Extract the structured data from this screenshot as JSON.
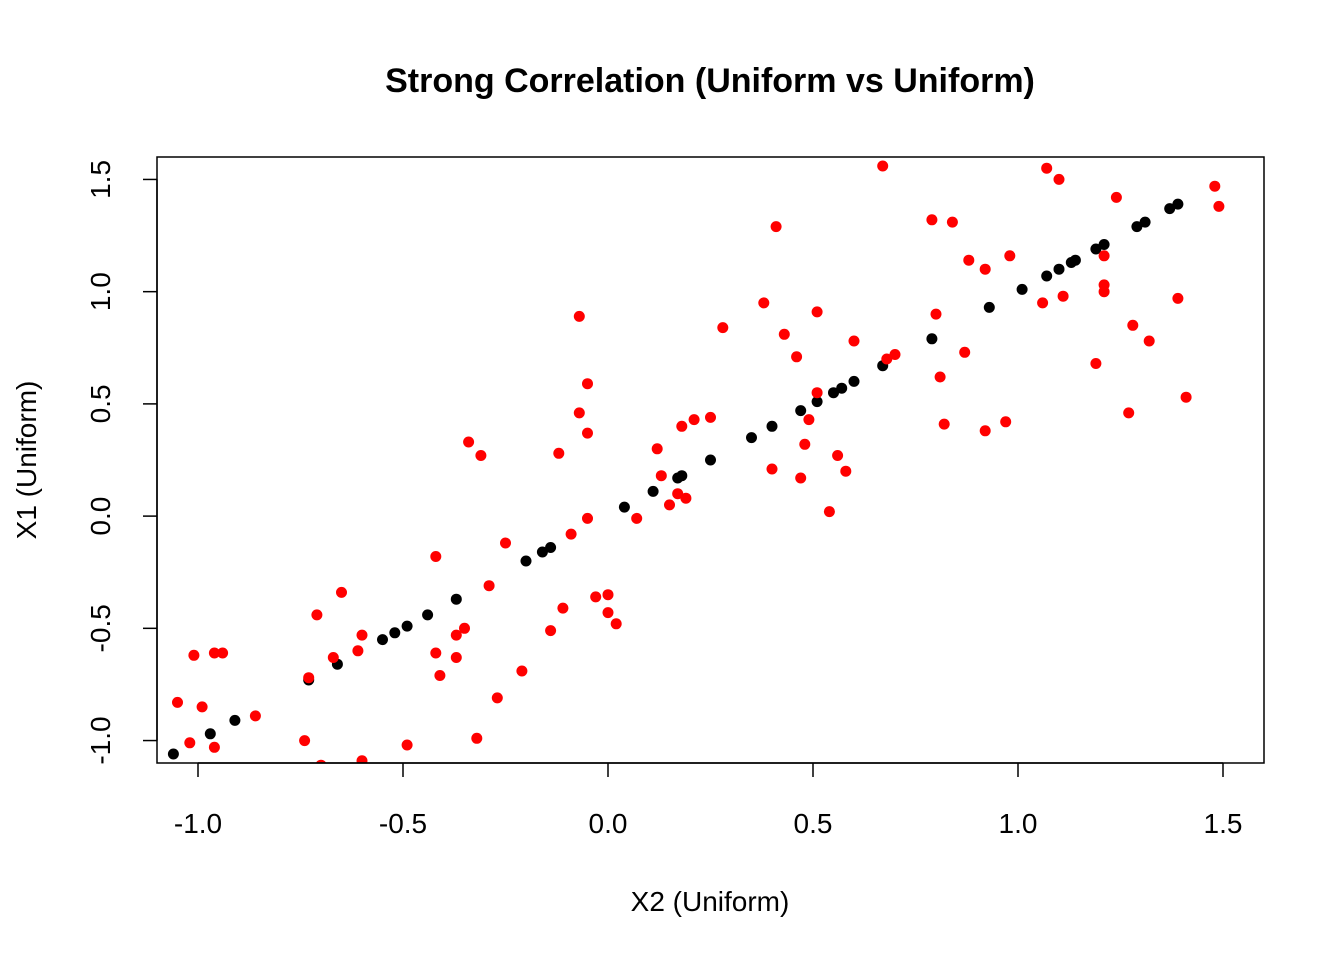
{
  "chart_data": {
    "type": "scatter",
    "title": "Strong  Correlation (Uniform vs Uniform)",
    "xlabel": "X2 (Uniform)",
    "ylabel": "X1 (Uniform)",
    "xlim": [
      -1.1,
      1.6
    ],
    "ylim": [
      -1.1,
      1.6
    ],
    "xticks": [
      -1.0,
      -0.5,
      0.0,
      0.5,
      1.0,
      1.5
    ],
    "xtick_labels": [
      "-1.0",
      "-0.5",
      "0.0",
      "0.5",
      "1.0",
      "1.5"
    ],
    "yticks": [
      -1.0,
      -0.5,
      0.0,
      0.5,
      1.0,
      1.5
    ],
    "ytick_labels": [
      "-1.0",
      "-0.5",
      "0.0",
      "0.5",
      "1.0",
      "1.5"
    ],
    "grid": false,
    "legend": "none",
    "series": [
      {
        "color": "#000000",
        "points": [
          [
            -1.06,
            -1.06
          ],
          [
            -0.97,
            -0.97
          ],
          [
            -0.91,
            -0.91
          ],
          [
            -0.73,
            -0.73
          ],
          [
            -0.66,
            -0.66
          ],
          [
            -0.55,
            -0.55
          ],
          [
            -0.52,
            -0.52
          ],
          [
            -0.49,
            -0.49
          ],
          [
            -0.44,
            -0.44
          ],
          [
            -0.37,
            -0.37
          ],
          [
            -0.2,
            -0.2
          ],
          [
            -0.16,
            -0.16
          ],
          [
            -0.14,
            -0.14
          ],
          [
            0.04,
            0.04
          ],
          [
            0.11,
            0.11
          ],
          [
            0.17,
            0.17
          ],
          [
            0.18,
            0.18
          ],
          [
            0.25,
            0.25
          ],
          [
            0.35,
            0.35
          ],
          [
            0.4,
            0.4
          ],
          [
            0.47,
            0.47
          ],
          [
            0.51,
            0.51
          ],
          [
            0.55,
            0.55
          ],
          [
            0.57,
            0.57
          ],
          [
            0.6,
            0.6
          ],
          [
            0.67,
            0.67
          ],
          [
            0.79,
            0.79
          ],
          [
            0.93,
            0.93
          ],
          [
            1.01,
            1.01
          ],
          [
            1.07,
            1.07
          ],
          [
            1.1,
            1.1
          ],
          [
            1.13,
            1.13
          ],
          [
            1.14,
            1.14
          ],
          [
            1.19,
            1.19
          ],
          [
            1.21,
            1.21
          ],
          [
            1.29,
            1.29
          ],
          [
            1.31,
            1.31
          ],
          [
            1.37,
            1.37
          ],
          [
            1.39,
            1.39
          ]
        ]
      },
      {
        "color": "#ff0000",
        "points": [
          [
            -1.05,
            -0.83
          ],
          [
            -1.02,
            -1.01
          ],
          [
            -1.01,
            -0.62
          ],
          [
            -0.99,
            -0.85
          ],
          [
            -0.96,
            -0.61
          ],
          [
            -0.96,
            -1.03
          ],
          [
            -0.94,
            -0.61
          ],
          [
            -0.86,
            -0.89
          ],
          [
            -0.74,
            -1.0
          ],
          [
            -0.73,
            -0.72
          ],
          [
            -0.71,
            -0.44
          ],
          [
            -0.7,
            -1.11
          ],
          [
            -0.67,
            -0.63
          ],
          [
            -0.65,
            -0.34
          ],
          [
            -0.61,
            -0.6
          ],
          [
            -0.6,
            -0.53
          ],
          [
            -0.6,
            -1.09
          ],
          [
            -0.49,
            -1.02
          ],
          [
            -0.42,
            -0.18
          ],
          [
            -0.42,
            -0.61
          ],
          [
            -0.41,
            -0.71
          ],
          [
            -0.37,
            -0.63
          ],
          [
            -0.37,
            -0.53
          ],
          [
            -0.35,
            -0.5
          ],
          [
            -0.34,
            0.33
          ],
          [
            -0.32,
            -0.99
          ],
          [
            -0.31,
            0.27
          ],
          [
            -0.29,
            -0.31
          ],
          [
            -0.27,
            -0.81
          ],
          [
            -0.25,
            -0.12
          ],
          [
            -0.21,
            -0.69
          ],
          [
            -0.14,
            -0.51
          ],
          [
            -0.12,
            0.28
          ],
          [
            -0.11,
            -0.41
          ],
          [
            -0.09,
            -0.08
          ],
          [
            -0.07,
            0.89
          ],
          [
            -0.07,
            0.46
          ],
          [
            -0.05,
            0.59
          ],
          [
            -0.05,
            0.37
          ],
          [
            -0.05,
            -0.01
          ],
          [
            -0.03,
            -0.36
          ],
          [
            0.0,
            -0.43
          ],
          [
            0.0,
            -0.35
          ],
          [
            0.02,
            -0.48
          ],
          [
            0.07,
            -0.01
          ],
          [
            0.12,
            0.3
          ],
          [
            0.13,
            0.18
          ],
          [
            0.15,
            0.05
          ],
          [
            0.17,
            0.1
          ],
          [
            0.18,
            0.4
          ],
          [
            0.19,
            0.08
          ],
          [
            0.21,
            0.43
          ],
          [
            0.25,
            0.44
          ],
          [
            0.28,
            0.84
          ],
          [
            0.38,
            0.95
          ],
          [
            0.4,
            0.21
          ],
          [
            0.41,
            1.29
          ],
          [
            0.43,
            0.81
          ],
          [
            0.46,
            0.71
          ],
          [
            0.47,
            0.17
          ],
          [
            0.48,
            0.32
          ],
          [
            0.49,
            0.43
          ],
          [
            0.51,
            0.91
          ],
          [
            0.51,
            0.55
          ],
          [
            0.54,
            0.02
          ],
          [
            0.56,
            0.27
          ],
          [
            0.58,
            0.2
          ],
          [
            0.6,
            0.78
          ],
          [
            0.67,
            1.56
          ],
          [
            0.68,
            0.7
          ],
          [
            0.7,
            0.72
          ],
          [
            0.79,
            1.32
          ],
          [
            0.8,
            0.9
          ],
          [
            0.81,
            0.62
          ],
          [
            0.82,
            0.41
          ],
          [
            0.84,
            1.31
          ],
          [
            0.87,
            0.73
          ],
          [
            0.88,
            1.14
          ],
          [
            0.92,
            1.1
          ],
          [
            0.92,
            0.38
          ],
          [
            0.97,
            0.42
          ],
          [
            0.98,
            1.16
          ],
          [
            1.06,
            0.95
          ],
          [
            1.07,
            1.55
          ],
          [
            1.1,
            1.5
          ],
          [
            1.11,
            0.98
          ],
          [
            1.19,
            0.68
          ],
          [
            1.21,
            1.16
          ],
          [
            1.21,
            1.0
          ],
          [
            1.21,
            1.03
          ],
          [
            1.24,
            1.42
          ],
          [
            1.27,
            0.46
          ],
          [
            1.28,
            0.85
          ],
          [
            1.32,
            0.78
          ],
          [
            1.39,
            0.97
          ],
          [
            1.41,
            0.53
          ],
          [
            1.48,
            1.47
          ],
          [
            1.49,
            1.38
          ]
        ]
      }
    ]
  }
}
